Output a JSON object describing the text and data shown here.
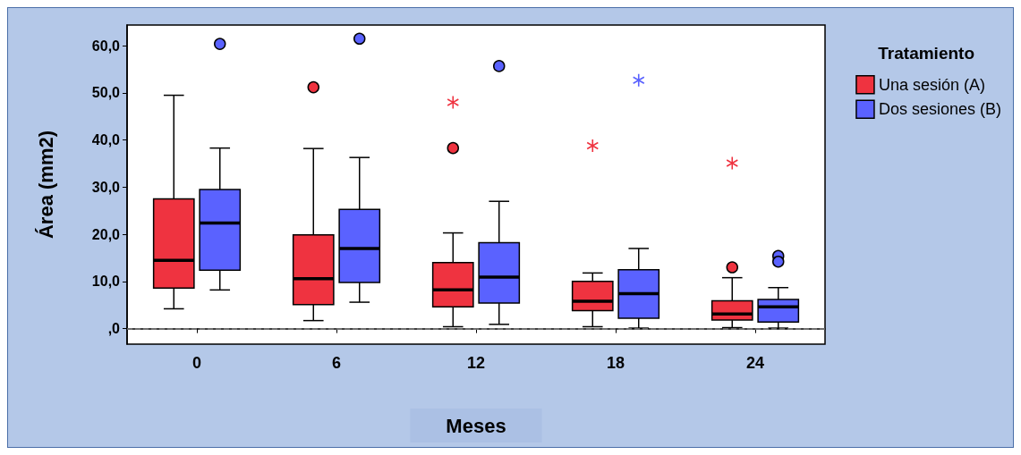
{
  "chart_data": {
    "type": "box",
    "xlabel": "Meses",
    "ylabel": "Área (mm2)",
    "legend_title": "Tratamiento",
    "legend": "top right",
    "grid": false,
    "categories": [
      "0",
      "6",
      "12",
      "18",
      "24"
    ],
    "ylim": [
      -3.3,
      64.4
    ],
    "yticks": [
      {
        "value": 0,
        "label": ",0"
      },
      {
        "value": 10,
        "label": "10,0"
      },
      {
        "value": 20,
        "label": "20,0"
      },
      {
        "value": 30,
        "label": "30,0"
      },
      {
        "value": 40,
        "label": "40,0"
      },
      {
        "value": 50,
        "label": "50,0"
      },
      {
        "value": 60,
        "label": "60,0"
      }
    ],
    "ref_lines": [
      {
        "axis": "y",
        "value": 0,
        "color": "#808080",
        "line_style": "dashed"
      }
    ],
    "series": [
      {
        "name": "Una sesión (A)",
        "color": "#ef3340",
        "boxes": [
          {
            "low": 4.2,
            "q1": 8.6,
            "median": 14.5,
            "q3": 27.5,
            "high": 49.5
          },
          {
            "low": 1.7,
            "q1": 5.1,
            "median": 10.6,
            "q3": 19.9,
            "high": 38.2,
            "outliers": [
              51.2
            ]
          },
          {
            "low": 0.4,
            "q1": 4.6,
            "median": 8.2,
            "q3": 14.0,
            "high": 20.3,
            "outliers": [
              38.3
            ]
          },
          {
            "low": 0.4,
            "q1": 3.8,
            "median": 5.8,
            "q3": 10.0,
            "high": 11.8
          },
          {
            "low": 0.2,
            "q1": 1.8,
            "median": 3.1,
            "q3": 5.9,
            "high": 10.8,
            "outliers": [
              13.0
            ]
          }
        ]
      },
      {
        "name": "Dos sesiones (B)",
        "color": "#5a62ff",
        "boxes": [
          {
            "low": 8.2,
            "q1": 12.4,
            "median": 22.4,
            "q3": 29.5,
            "high": 38.3,
            "outliers": [
              60.4
            ]
          },
          {
            "low": 5.6,
            "q1": 9.8,
            "median": 17.0,
            "q3": 25.3,
            "high": 36.3,
            "outliers": [
              61.5
            ]
          },
          {
            "low": 0.9,
            "q1": 5.4,
            "median": 10.9,
            "q3": 18.2,
            "high": 27.0,
            "outliers": [
              55.7
            ]
          },
          {
            "low": 0.1,
            "q1": 2.2,
            "median": 7.4,
            "q3": 12.5,
            "high": 17.0
          },
          {
            "low": 0.1,
            "q1": 1.4,
            "median": 4.6,
            "q3": 6.2,
            "high": 8.7,
            "outliers": [
              15.4,
              14.2
            ]
          }
        ]
      },
      {
        "type": "scatter",
        "marker": "cross",
        "color": "#ef3340",
        "x": [
          "12",
          "18",
          "24"
        ],
        "values": [
          48.0,
          38.8,
          35.1
        ]
      },
      {
        "type": "scatter",
        "marker": "cross",
        "color": "#5a62ff",
        "x": [
          "18"
        ],
        "values": [
          52.7
        ]
      }
    ]
  }
}
